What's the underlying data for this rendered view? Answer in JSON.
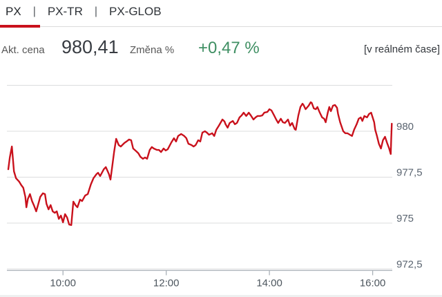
{
  "tabs": [
    {
      "label": "PX",
      "active": true
    },
    {
      "label": "PX-TR",
      "active": false
    },
    {
      "label": "PX-GLOB",
      "active": false
    }
  ],
  "tab_separator": "|",
  "info": {
    "price_label": "Akt. cena",
    "price": "980,41",
    "change_label": "Změna %",
    "change": "+0,47 %",
    "realtime_note": "[v reálném čase]"
  },
  "colors": {
    "accent_red": "#c9111c",
    "positive_green": "#3f8f63",
    "dark_text": "#33373c",
    "muted_text": "#575757",
    "axis_text": "#5a6470",
    "tick_text": "#4d565e",
    "gridline": "#dbdcdd",
    "axis": "#aab1b8",
    "divider": "#dcdcdc",
    "bottom_strip": "#eef0f0"
  },
  "chart_data": {
    "type": "line",
    "title": "",
    "xlabel": "",
    "ylabel": "",
    "legend": "none",
    "grid": "horizontal",
    "x_range": [
      8.94,
      16.38
    ],
    "y_range": [
      972.5,
      982.5
    ],
    "y_gridlines": [
      982.5,
      980,
      977.5,
      975,
      972.5
    ],
    "y_ticks": [
      {
        "v": 980,
        "label": "980"
      },
      {
        "v": 977.5,
        "label": "977,5"
      },
      {
        "v": 975,
        "label": "975"
      },
      {
        "v": 972.5,
        "label": "972,5"
      }
    ],
    "x_ticks": [
      {
        "t": 10,
        "label": "10:00"
      },
      {
        "t": 12,
        "label": "12:00"
      },
      {
        "t": 14,
        "label": "14:00"
      },
      {
        "t": 16,
        "label": "16:00"
      }
    ],
    "series": [
      {
        "name": "PX",
        "color": "#c9111c",
        "points": [
          [
            8.94,
            977.93
          ],
          [
            8.97,
            978.57
          ],
          [
            9.01,
            979.17
          ],
          [
            9.05,
            977.82
          ],
          [
            9.09,
            977.44
          ],
          [
            9.15,
            977.26
          ],
          [
            9.19,
            977.07
          ],
          [
            9.23,
            976.92
          ],
          [
            9.27,
            976.43
          ],
          [
            9.29,
            975.86
          ],
          [
            9.32,
            976.32
          ],
          [
            9.36,
            976.58
          ],
          [
            9.4,
            976.2
          ],
          [
            9.44,
            975.94
          ],
          [
            9.48,
            975.64
          ],
          [
            9.52,
            976.02
          ],
          [
            9.56,
            976.43
          ],
          [
            9.61,
            976.62
          ],
          [
            9.65,
            976.58
          ],
          [
            9.68,
            976.05
          ],
          [
            9.72,
            975.75
          ],
          [
            9.76,
            975.98
          ],
          [
            9.8,
            975.64
          ],
          [
            9.84,
            975.56
          ],
          [
            9.88,
            975.64
          ],
          [
            9.92,
            975.23
          ],
          [
            9.96,
            975.41
          ],
          [
            10.0,
            975.04
          ],
          [
            10.04,
            975.49
          ],
          [
            10.08,
            975.3
          ],
          [
            10.12,
            974.92
          ],
          [
            10.16,
            974.89
          ],
          [
            10.2,
            976.17
          ],
          [
            10.24,
            975.98
          ],
          [
            10.28,
            975.86
          ],
          [
            10.33,
            976.28
          ],
          [
            10.37,
            976.2
          ],
          [
            10.43,
            976.5
          ],
          [
            10.48,
            976.58
          ],
          [
            10.54,
            977.11
          ],
          [
            10.59,
            977.44
          ],
          [
            10.65,
            977.67
          ],
          [
            10.68,
            977.74
          ],
          [
            10.72,
            977.56
          ],
          [
            10.79,
            977.93
          ],
          [
            10.83,
            978.05
          ],
          [
            10.89,
            977.67
          ],
          [
            10.92,
            977.37
          ],
          [
            10.96,
            978.23
          ],
          [
            10.99,
            978.87
          ],
          [
            11.03,
            979.59
          ],
          [
            11.08,
            979.25
          ],
          [
            11.12,
            979.17
          ],
          [
            11.19,
            979.36
          ],
          [
            11.23,
            979.44
          ],
          [
            11.28,
            979.55
          ],
          [
            11.32,
            979.51
          ],
          [
            11.36,
            979.06
          ],
          [
            11.42,
            978.91
          ],
          [
            11.46,
            978.8
          ],
          [
            11.5,
            978.61
          ],
          [
            11.55,
            978.5
          ],
          [
            11.59,
            978.57
          ],
          [
            11.63,
            978.5
          ],
          [
            11.68,
            978.98
          ],
          [
            11.72,
            979.14
          ],
          [
            11.76,
            979.06
          ],
          [
            11.82,
            978.98
          ],
          [
            11.86,
            978.98
          ],
          [
            11.9,
            978.87
          ],
          [
            11.95,
            979.06
          ],
          [
            11.99,
            978.95
          ],
          [
            12.03,
            979.02
          ],
          [
            12.1,
            979.4
          ],
          [
            12.15,
            979.62
          ],
          [
            12.19,
            979.44
          ],
          [
            12.23,
            979.74
          ],
          [
            12.29,
            979.85
          ],
          [
            12.35,
            979.74
          ],
          [
            12.39,
            979.62
          ],
          [
            12.43,
            979.32
          ],
          [
            12.49,
            979.25
          ],
          [
            12.53,
            979.17
          ],
          [
            12.57,
            979.25
          ],
          [
            12.62,
            979.51
          ],
          [
            12.66,
            979.44
          ],
          [
            12.7,
            979.92
          ],
          [
            12.75,
            980.0
          ],
          [
            12.79,
            979.92
          ],
          [
            12.83,
            979.81
          ],
          [
            12.89,
            979.89
          ],
          [
            12.93,
            979.74
          ],
          [
            12.97,
            980.08
          ],
          [
            13.02,
            980.3
          ],
          [
            13.09,
            980.64
          ],
          [
            13.13,
            980.53
          ],
          [
            13.15,
            980.38
          ],
          [
            13.19,
            980.19
          ],
          [
            13.23,
            980.45
          ],
          [
            13.29,
            980.56
          ],
          [
            13.33,
            980.38
          ],
          [
            13.37,
            980.45
          ],
          [
            13.42,
            980.75
          ],
          [
            13.46,
            980.86
          ],
          [
            13.5,
            981.01
          ],
          [
            13.55,
            980.83
          ],
          [
            13.6,
            981.01
          ],
          [
            13.64,
            980.86
          ],
          [
            13.69,
            980.64
          ],
          [
            13.73,
            980.75
          ],
          [
            13.77,
            980.83
          ],
          [
            13.82,
            980.83
          ],
          [
            13.86,
            980.86
          ],
          [
            13.9,
            981.01
          ],
          [
            13.96,
            981.05
          ],
          [
            14.0,
            981.2
          ],
          [
            14.04,
            981.13
          ],
          [
            14.09,
            980.86
          ],
          [
            14.13,
            980.64
          ],
          [
            14.17,
            980.45
          ],
          [
            14.22,
            980.68
          ],
          [
            14.26,
            980.49
          ],
          [
            14.3,
            980.45
          ],
          [
            14.36,
            980.64
          ],
          [
            14.4,
            980.3
          ],
          [
            14.44,
            980.45
          ],
          [
            14.49,
            980.11
          ],
          [
            14.51,
            980.08
          ],
          [
            14.56,
            980.86
          ],
          [
            14.6,
            981.32
          ],
          [
            14.64,
            981.5
          ],
          [
            14.66,
            981.43
          ],
          [
            14.7,
            981.2
          ],
          [
            14.76,
            981.39
          ],
          [
            14.8,
            981.58
          ],
          [
            14.82,
            981.54
          ],
          [
            14.86,
            981.24
          ],
          [
            14.9,
            981.2
          ],
          [
            14.93,
            981.32
          ],
          [
            14.97,
            981.05
          ],
          [
            15.02,
            980.75
          ],
          [
            15.06,
            980.68
          ],
          [
            15.09,
            980.49
          ],
          [
            15.13,
            981.01
          ],
          [
            15.16,
            981.32
          ],
          [
            15.19,
            981.09
          ],
          [
            15.23,
            981.39
          ],
          [
            15.27,
            981.43
          ],
          [
            15.31,
            981.28
          ],
          [
            15.33,
            980.94
          ],
          [
            15.37,
            980.49
          ],
          [
            15.43,
            980.0
          ],
          [
            15.47,
            979.89
          ],
          [
            15.51,
            979.89
          ],
          [
            15.56,
            979.81
          ],
          [
            15.6,
            979.74
          ],
          [
            15.64,
            980.08
          ],
          [
            15.69,
            980.38
          ],
          [
            15.73,
            980.68
          ],
          [
            15.77,
            980.75
          ],
          [
            15.8,
            980.56
          ],
          [
            15.84,
            980.83
          ],
          [
            15.89,
            980.75
          ],
          [
            15.93,
            980.94
          ],
          [
            15.97,
            981.01
          ],
          [
            16.03,
            980.49
          ],
          [
            16.05,
            980.08
          ],
          [
            16.08,
            979.77
          ],
          [
            16.12,
            979.32
          ],
          [
            16.16,
            979.06
          ],
          [
            16.2,
            979.51
          ],
          [
            16.24,
            979.7
          ],
          [
            16.28,
            979.36
          ],
          [
            16.32,
            979.06
          ],
          [
            16.35,
            978.76
          ],
          [
            16.36,
            979.62
          ],
          [
            16.37,
            980.41
          ]
        ]
      }
    ]
  }
}
